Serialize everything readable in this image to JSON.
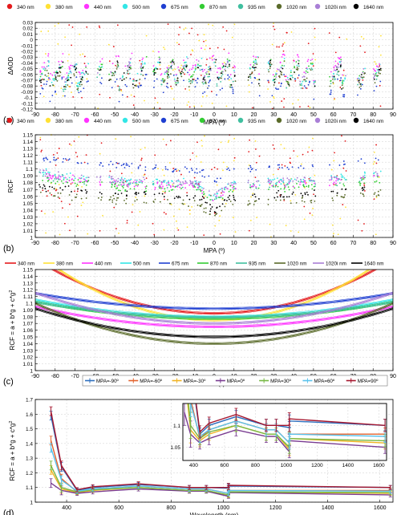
{
  "figure": {
    "panels": [
      {
        "id": "a",
        "panel_label": "(a)",
        "type": "scatter",
        "xlabel": "MPA (º)",
        "ylabel": "ΔAOD",
        "xlim": [
          -90,
          90
        ],
        "ylim": [
          -0.12,
          0.03
        ],
        "xticks": [
          -90,
          -80,
          -70,
          -60,
          -50,
          -40,
          -30,
          -20,
          -10,
          0,
          10,
          20,
          30,
          40,
          50,
          60,
          70,
          80,
          90
        ],
        "yticks": [
          -0.12,
          -0.11,
          -0.1,
          -0.09,
          -0.08,
          -0.07,
          -0.06,
          -0.05,
          -0.04,
          -0.03,
          -0.02,
          -0.01,
          0,
          0.01,
          0.02,
          0.03
        ],
        "ytick_labels": [
          "-0.12",
          "-0.11",
          "-0.1",
          "-0.09",
          "-0.08",
          "-0.07",
          "-0.06",
          "-0.05",
          "-0.04",
          "-0.03",
          "-0.02",
          "-0.01",
          "0",
          "0.01",
          "0.02",
          "0.03"
        ],
        "grid": true,
        "legend": [
          {
            "name": "340 nm",
            "color": "#e41a1c"
          },
          {
            "name": "380 nm",
            "color": "#ffe135"
          },
          {
            "name": "440 nm",
            "color": "#ff33ff"
          },
          {
            "name": "500 nm",
            "color": "#33e6e6"
          },
          {
            "name": "675 nm",
            "color": "#1f3fd1"
          },
          {
            "name": "870 nm",
            "color": "#33cc33"
          },
          {
            "name": "935 nm",
            "color": "#3fbf9f"
          },
          {
            "name": "1020 nm",
            "color": "#5a6b2a"
          },
          {
            "name": "1020i nm",
            "color": "#a97fd6"
          },
          {
            "name": "1640 nm",
            "color": "#000000"
          }
        ],
        "data_gaps_mpa": [
          [
            -63,
            -59
          ],
          [
            -56,
            -53
          ],
          [
            -34,
            -31
          ],
          [
            11,
            17
          ],
          [
            23,
            27
          ],
          [
            51,
            58
          ],
          [
            67,
            72
          ],
          [
            76,
            80
          ],
          [
            84,
            90
          ]
        ],
        "approx_series_center_at_mpa0": {
          "340 nm": -0.065,
          "380 nm": -0.07,
          "440 nm": -0.04,
          "500 nm": -0.05,
          "675 nm": -0.075,
          "870 nm": -0.05,
          "935 nm": -0.06,
          "1020 nm": -0.06,
          "1020i nm": -0.05,
          "1640 nm": -0.055
        }
      },
      {
        "id": "b",
        "panel_label": "(b)",
        "type": "scatter",
        "xlabel": "MPA (º)",
        "ylabel": "RCF",
        "xlim": [
          -90,
          90
        ],
        "ylim": [
          1.0,
          1.15
        ],
        "xticks": [
          -90,
          -80,
          -70,
          -60,
          -50,
          -40,
          -30,
          -20,
          -10,
          0,
          10,
          20,
          30,
          40,
          50,
          60,
          70,
          80,
          90
        ],
        "yticks": [
          1.0,
          1.01,
          1.02,
          1.03,
          1.04,
          1.05,
          1.06,
          1.07,
          1.08,
          1.09,
          1.1,
          1.11,
          1.12,
          1.13,
          1.14,
          1.15
        ],
        "ytick_labels": [
          "1",
          "1.01",
          "1.02",
          "1.03",
          "1.04",
          "1.05",
          "1.06",
          "1.07",
          "1.08",
          "1.09",
          "1.1",
          "1.11",
          "1.12",
          "1.13",
          "1.14",
          "1.15"
        ],
        "grid": true,
        "legend": [
          {
            "name": "340 nm",
            "color": "#e41a1c"
          },
          {
            "name": "380 nm",
            "color": "#ffe135"
          },
          {
            "name": "440 nm",
            "color": "#ff33ff"
          },
          {
            "name": "500 nm",
            "color": "#33e6e6"
          },
          {
            "name": "675 nm",
            "color": "#1f3fd1"
          },
          {
            "name": "870 nm",
            "color": "#33cc33"
          },
          {
            "name": "935 nm",
            "color": "#3fbf9f"
          },
          {
            "name": "1020 nm",
            "color": "#5a6b2a"
          },
          {
            "name": "1020i nm",
            "color": "#a97fd6"
          },
          {
            "name": "1640 nm",
            "color": "#000000"
          }
        ],
        "data_gaps_mpa": [
          [
            -63,
            -59
          ],
          [
            -56,
            -53
          ],
          [
            -34,
            -31
          ],
          [
            11,
            17
          ],
          [
            23,
            27
          ],
          [
            51,
            58
          ],
          [
            67,
            72
          ],
          [
            76,
            80
          ],
          [
            84,
            90
          ]
        ],
        "approx_series_level": {
          "340 nm": 1.07,
          "380 nm": 1.08,
          "440 nm": 1.075,
          "500 nm": 1.08,
          "675 nm": 1.1,
          "870 nm": 1.07,
          "935 nm": 1.075,
          "1020 nm": 1.05,
          "1020i nm": 1.08,
          "1640 nm": 1.06
        }
      },
      {
        "id": "c",
        "panel_label": "(c)",
        "type": "line",
        "xlabel": "MPA (º)",
        "ylabel": "RCF = a + b*g + c*g²",
        "ylabel_parts": {
          "main": "RCF = a + b*g + c*g",
          "sup": "2"
        },
        "xlim": [
          -90,
          90
        ],
        "ylim": [
          1.0,
          1.15
        ],
        "xticks": [
          -90,
          -80,
          -70,
          -60,
          -50,
          -40,
          -30,
          -20,
          -10,
          0,
          10,
          20,
          30,
          40,
          50,
          60,
          70,
          80,
          90
        ],
        "yticks": [
          1.0,
          1.01,
          1.02,
          1.03,
          1.04,
          1.05,
          1.06,
          1.07,
          1.08,
          1.09,
          1.1,
          1.11,
          1.12,
          1.13,
          1.14,
          1.15
        ],
        "ytick_labels": [
          "1",
          "1.01",
          "1.02",
          "1.03",
          "1.04",
          "1.05",
          "1.06",
          "1.07",
          "1.08",
          "1.09",
          "1.1",
          "1.11",
          "1.12",
          "1.13",
          "1.14",
          "1.15"
        ],
        "grid": true,
        "series": [
          {
            "name": "340 nm",
            "color": "#e41a1c",
            "a": 1.085,
            "c": 9.9e-06
          },
          {
            "name": "380 nm",
            "color": "#ffe135",
            "a": 1.075,
            "c": 1.23e-05
          },
          {
            "name": "440 nm",
            "color": "#ff33ff",
            "a": 1.065,
            "c": 3.7e-06
          },
          {
            "name": "500 nm",
            "color": "#33e6e6",
            "a": 1.08,
            "c": 3.1e-06
          },
          {
            "name": "675 nm",
            "color": "#1f3fd1",
            "a": 1.092,
            "c": 2.8e-06
          },
          {
            "name": "870 nm",
            "color": "#33cc33",
            "a": 1.077,
            "c": 3.1e-06
          },
          {
            "name": "935 nm",
            "color": "#3fbf9f",
            "a": 1.079,
            "c": 2.8e-06
          },
          {
            "name": "1020 nm",
            "color": "#5a6b2a",
            "a": 1.04,
            "c": 7.4e-06
          },
          {
            "name": "1020i nm",
            "color": "#a97fd6",
            "a": 1.07,
            "c": 5.6e-06
          },
          {
            "name": "1640 nm",
            "color": "#000000",
            "a": 1.05,
            "c": 5.2e-06
          }
        ]
      },
      {
        "id": "d",
        "panel_label": "(d)",
        "type": "line",
        "xlabel": "Wavelength (nm)",
        "ylabel": "RCF = a + b*g + c*g²",
        "ylabel_parts": {
          "main": "RCF = a + b*g + c*g",
          "sup": "2"
        },
        "xlim": [
          280,
          1650
        ],
        "ylim": [
          1.0,
          1.7
        ],
        "xticks": [
          400,
          600,
          800,
          1000,
          1200,
          1400,
          1600
        ],
        "yticks": [
          1.0,
          1.1,
          1.2,
          1.3,
          1.4,
          1.5,
          1.6,
          1.7
        ],
        "ytick_labels": [
          "1",
          "1.1",
          "1.2",
          "1.3",
          "1.4",
          "1.5",
          "1.6",
          "1.7"
        ],
        "grid": true,
        "wavelengths": [
          340,
          380,
          440,
          500,
          675,
          870,
          935,
          1020,
          1020,
          1640
        ],
        "series": [
          {
            "name": "MPA=-90º",
            "color": "#2e6fbe",
            "values": [
              1.59,
              1.24,
              1.08,
              1.1,
              1.12,
              1.1,
              1.1,
              1.095,
              1.11,
              1.1
            ]
          },
          {
            "name": "MPA=-60º",
            "color": "#e2622c",
            "values": [
              1.42,
              1.16,
              1.07,
              1.09,
              1.11,
              1.09,
              1.09,
              1.06,
              1.08,
              1.08
            ]
          },
          {
            "name": "MPA=-30º",
            "color": "#f0b323",
            "values": [
              1.22,
              1.09,
              1.065,
              1.08,
              1.1,
              1.08,
              1.08,
              1.045,
              1.07,
              1.06
            ]
          },
          {
            "name": "MPA=0º",
            "color": "#7a3c91",
            "values": [
              1.13,
              1.08,
              1.06,
              1.07,
              1.09,
              1.075,
              1.075,
              1.04,
              1.065,
              1.05
            ]
          },
          {
            "name": "MPA=30º",
            "color": "#77b843",
            "values": [
              1.25,
              1.1,
              1.07,
              1.085,
              1.1,
              1.08,
              1.08,
              1.05,
              1.07,
              1.065
            ]
          },
          {
            "name": "MPA=60º",
            "color": "#5bc3ec",
            "values": [
              1.37,
              1.15,
              1.075,
              1.09,
              1.11,
              1.09,
              1.09,
              1.06,
              1.08,
              1.075
            ]
          },
          {
            "name": "MPA=90º",
            "color": "#a5162e",
            "values": [
              1.62,
              1.25,
              1.085,
              1.105,
              1.125,
              1.1,
              1.1,
              1.1,
              1.115,
              1.1
            ]
          }
        ],
        "inset": {
          "xlim": [
            330,
            1650
          ],
          "ylim": [
            1.02,
            1.15
          ],
          "xticks": [
            400,
            600,
            800,
            1000,
            1200,
            1400,
            1600
          ],
          "yticks": [
            1.05,
            1.1
          ],
          "ytick_labels": [
            "1.05",
            "1.1"
          ]
        }
      }
    ]
  }
}
